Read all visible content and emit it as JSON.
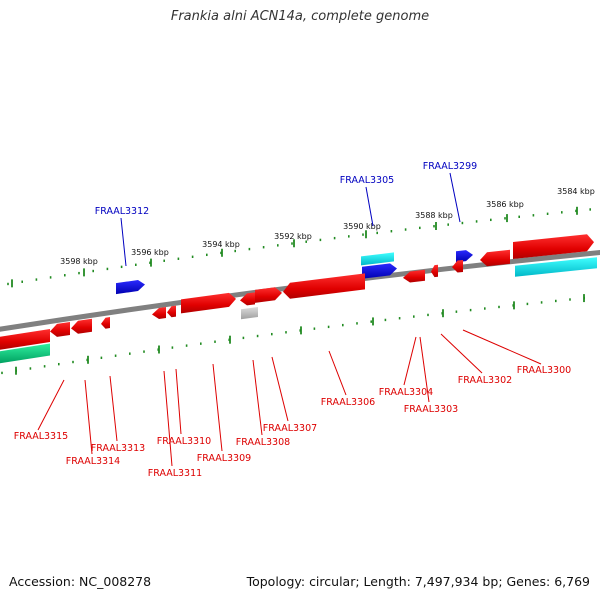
{
  "title": "Frankia alni ACN14a, complete genome",
  "footer": {
    "accession_label": "Accession:",
    "accession": "NC_008278",
    "topology_label": "Topology:",
    "topology": "circular",
    "length_label": "Length:",
    "length": "7,497,934 bp",
    "genes_label": "Genes:",
    "genes": "6,769"
  },
  "colors": {
    "backbone": "#888888",
    "forward_gene": "#ff0000",
    "reverse_gene": "#ff0000",
    "blue_gene": "#0000e0",
    "cyan_gene": "#00e0e0",
    "teal_gene": "#00d080",
    "grey_gene": "#c0c0c0",
    "tick": "#228b22",
    "label_upper": "#0000c0",
    "label_lower": "#dd0000"
  },
  "scale_labels": [
    "3598 kbp",
    "3596 kbp",
    "3594 kbp",
    "3592 kbp",
    "3590 kbp",
    "3588 kbp",
    "3586 kbp",
    "3584 kbp"
  ],
  "upper_labels": [
    "FRAAL3312",
    "FRAAL3305",
    "FRAAL3299"
  ],
  "lower_labels": [
    "FRAAL3315",
    "FRAAL3314",
    "FRAAL3313",
    "FRAAL3311",
    "FRAAL3310",
    "FRAAL3309",
    "FRAAL3308",
    "FRAAL3307",
    "FRAAL3306",
    "FRAAL3304",
    "FRAAL3303",
    "FRAAL3302",
    "FRAAL3300"
  ]
}
